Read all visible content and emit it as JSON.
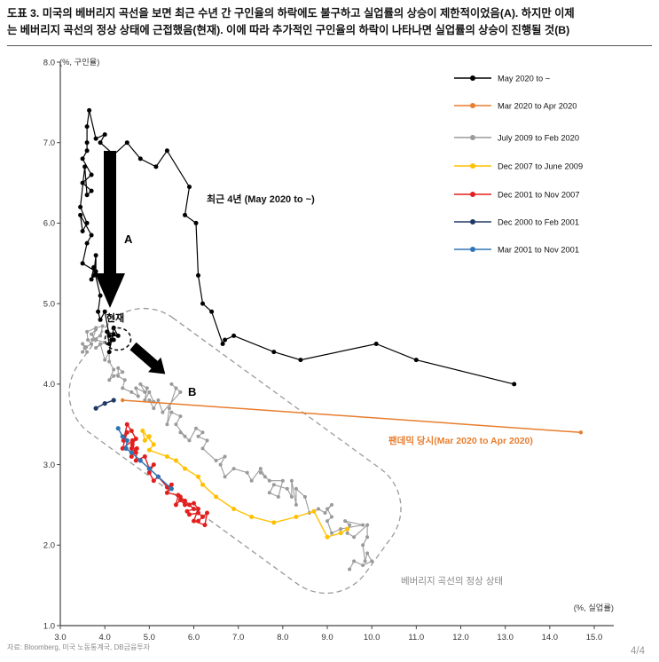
{
  "doc": {
    "title_line1": "도표 3. 미국의 베버리지 곡선을 보면 최근 수년 간 구인율의 하락에도 불구하고 실업률의 상승이 제한적이었음(A). 하지만 이제",
    "title_line2": "는 베버리지 곡선의 정상 상태에 근접했음(현재). 이에 따라 추가적인 구인율의 하락이 나타나면 실업률의 상승이 진행될 것(B)",
    "source": "자료: Bloomberg, 미국 노동통계국, DB금융투자",
    "page": "4/4"
  },
  "chart_data": {
    "type": "scatter",
    "title": "",
    "x_axis": {
      "label": "(%, 실업률)",
      "min": 3.0,
      "max": 15.0,
      "ticks": [
        {
          "v": 3,
          "t": "3.0"
        },
        {
          "v": 4,
          "t": "4.0"
        },
        {
          "v": 5,
          "t": "5.0"
        },
        {
          "v": 6,
          "t": "6.0"
        },
        {
          "v": 7,
          "t": "7.0"
        },
        {
          "v": 8,
          "t": "8.0"
        },
        {
          "v": 9,
          "t": "9.0"
        },
        {
          "v": 10,
          "t": "10.0"
        },
        {
          "v": 11,
          "t": "11.0"
        },
        {
          "v": 12,
          "t": "12.0"
        },
        {
          "v": 13,
          "t": "13.0"
        },
        {
          "v": 14,
          "t": "14.0"
        },
        {
          "v": 15,
          "t": "15.0"
        }
      ]
    },
    "y_axis": {
      "label": "(%, 구인율)",
      "min": 1.0,
      "max": 8.0,
      "ticks": [
        {
          "v": 1,
          "t": "1.0"
        },
        {
          "v": 2,
          "t": "2.0"
        },
        {
          "v": 3,
          "t": "3.0"
        },
        {
          "v": 4,
          "t": "4.0"
        },
        {
          "v": 5,
          "t": "5.0"
        },
        {
          "v": 6,
          "t": "6.0"
        },
        {
          "v": 7,
          "t": "7.0"
        },
        {
          "v": 8,
          "t": "8.0"
        }
      ]
    },
    "grid": false,
    "legend_position": "top-right",
    "series": [
      {
        "name": "May 2020 to ~",
        "color": "#000000",
        "points": [
          [
            13.2,
            4.0
          ],
          [
            11.0,
            4.3
          ],
          [
            10.1,
            4.5
          ],
          [
            8.4,
            4.3
          ],
          [
            7.8,
            4.4
          ],
          [
            6.9,
            4.6
          ],
          [
            6.7,
            4.55
          ],
          [
            6.65,
            4.5
          ],
          [
            6.4,
            4.9
          ],
          [
            6.2,
            5.0
          ],
          [
            6.1,
            5.35
          ],
          [
            6.05,
            6.0
          ],
          [
            5.8,
            6.1
          ],
          [
            5.9,
            6.45
          ],
          [
            5.4,
            6.9
          ],
          [
            5.15,
            6.7
          ],
          [
            4.8,
            6.8
          ],
          [
            4.5,
            7.0
          ],
          [
            4.2,
            6.85
          ],
          [
            3.9,
            7.0
          ],
          [
            4.0,
            7.1
          ],
          [
            3.8,
            7.05
          ],
          [
            3.65,
            7.4
          ],
          [
            3.6,
            7.2
          ],
          [
            3.6,
            7.0
          ],
          [
            3.6,
            6.9
          ],
          [
            3.5,
            6.8
          ],
          [
            3.7,
            6.6
          ],
          [
            3.5,
            6.5
          ],
          [
            3.7,
            6.4
          ],
          [
            3.6,
            6.35
          ],
          [
            3.55,
            6.7
          ],
          [
            3.45,
            6.2
          ],
          [
            3.6,
            6.0
          ],
          [
            3.5,
            5.9
          ],
          [
            3.45,
            6.1
          ],
          [
            3.7,
            5.85
          ],
          [
            3.6,
            5.75
          ],
          [
            3.5,
            5.5
          ],
          [
            3.8,
            5.4
          ],
          [
            3.8,
            5.6
          ],
          [
            3.75,
            5.35
          ],
          [
            3.7,
            5.3
          ],
          [
            3.75,
            5.45
          ],
          [
            3.9,
            5.1
          ],
          [
            3.85,
            4.9
          ],
          [
            3.9,
            4.8
          ],
          [
            4.0,
            4.9
          ],
          [
            4.1,
            4.6
          ],
          [
            4.3,
            4.6
          ],
          [
            4.2,
            4.7
          ],
          [
            4.1,
            4.4
          ],
          [
            4.15,
            4.55
          ],
          [
            4.2,
            4.62
          ],
          [
            4.05,
            4.65
          ],
          [
            4.1,
            4.5
          ],
          [
            4.2,
            4.55
          ]
        ]
      },
      {
        "name": "Mar 2020 to Apr 2020",
        "color": "#E87D2E",
        "points": [
          [
            4.4,
            3.8
          ],
          [
            14.7,
            3.4
          ]
        ]
      },
      {
        "name": "July 2009 to Feb 2020",
        "color": "#9A9A9A",
        "points": [
          [
            9.5,
            1.7
          ],
          [
            9.6,
            1.8
          ],
          [
            9.8,
            1.75
          ],
          [
            10.0,
            1.8
          ],
          [
            9.9,
            1.9
          ],
          [
            9.85,
            1.8
          ],
          [
            9.8,
            2.0
          ],
          [
            9.9,
            2.1
          ],
          [
            9.9,
            2.25
          ],
          [
            9.6,
            2.1
          ],
          [
            9.45,
            2.15
          ],
          [
            9.5,
            2.25
          ],
          [
            9.4,
            2.3
          ],
          [
            9.8,
            2.25
          ],
          [
            9.3,
            2.2
          ],
          [
            9.1,
            2.15
          ],
          [
            9.0,
            2.3
          ],
          [
            9.1,
            2.35
          ],
          [
            9.0,
            2.45
          ],
          [
            9.1,
            2.5
          ],
          [
            8.95,
            2.4
          ],
          [
            8.8,
            2.45
          ],
          [
            8.6,
            2.4
          ],
          [
            8.5,
            2.6
          ],
          [
            8.3,
            2.7
          ],
          [
            8.3,
            2.5
          ],
          [
            8.2,
            2.8
          ],
          [
            8.2,
            2.6
          ],
          [
            8.1,
            2.7
          ],
          [
            7.8,
            2.75
          ],
          [
            7.7,
            2.65
          ],
          [
            7.9,
            2.6
          ],
          [
            8.0,
            2.8
          ],
          [
            7.7,
            2.8
          ],
          [
            7.5,
            2.9
          ],
          [
            7.6,
            2.85
          ],
          [
            7.5,
            2.95
          ],
          [
            7.3,
            2.8
          ],
          [
            7.2,
            2.9
          ],
          [
            6.9,
            2.95
          ],
          [
            6.7,
            2.85
          ],
          [
            6.6,
            3.0
          ],
          [
            6.7,
            3.1
          ],
          [
            6.5,
            3.05
          ],
          [
            6.2,
            3.2
          ],
          [
            6.3,
            3.3
          ],
          [
            6.1,
            3.35
          ],
          [
            6.2,
            3.4
          ],
          [
            6.05,
            3.45
          ],
          [
            5.9,
            3.3
          ],
          [
            5.7,
            3.4
          ],
          [
            5.8,
            3.35
          ],
          [
            5.6,
            3.5
          ],
          [
            5.7,
            3.6
          ],
          [
            5.5,
            3.65
          ],
          [
            5.4,
            3.5
          ],
          [
            5.45,
            3.7
          ],
          [
            5.6,
            3.95
          ],
          [
            5.5,
            4.0
          ],
          [
            5.7,
            3.9
          ],
          [
            5.3,
            3.65
          ],
          [
            5.2,
            3.8
          ],
          [
            5.1,
            3.7
          ],
          [
            5.0,
            3.8
          ],
          [
            5.1,
            3.78
          ],
          [
            5.0,
            3.9
          ],
          [
            4.9,
            3.8
          ],
          [
            4.95,
            3.95
          ],
          [
            4.8,
            4.0
          ],
          [
            4.9,
            3.9
          ],
          [
            4.7,
            3.95
          ],
          [
            4.75,
            3.85
          ],
          [
            4.6,
            3.9
          ],
          [
            4.4,
            3.95
          ],
          [
            4.45,
            4.05
          ],
          [
            4.3,
            4.1
          ],
          [
            4.3,
            4.2
          ],
          [
            4.4,
            4.15
          ],
          [
            4.2,
            4.1
          ],
          [
            4.1,
            4.05
          ],
          [
            4.2,
            4.18
          ],
          [
            4.1,
            4.28
          ],
          [
            4.1,
            4.4
          ],
          [
            4.0,
            4.3
          ],
          [
            3.9,
            4.5
          ],
          [
            3.8,
            4.45
          ],
          [
            4.0,
            4.52
          ],
          [
            3.8,
            4.55
          ],
          [
            3.7,
            4.62
          ],
          [
            3.8,
            4.68
          ],
          [
            3.72,
            4.55
          ],
          [
            3.9,
            4.6
          ],
          [
            3.95,
            4.72
          ],
          [
            3.8,
            4.7
          ],
          [
            3.6,
            4.65
          ],
          [
            3.62,
            4.55
          ],
          [
            3.7,
            4.5
          ],
          [
            3.55,
            4.45
          ],
          [
            3.6,
            4.4
          ],
          [
            3.5,
            4.5
          ],
          [
            3.58,
            4.46
          ],
          [
            3.5,
            4.4
          ]
        ]
      },
      {
        "name": "Dec 2007 to June 2009",
        "color": "#FFC000",
        "points": [
          [
            5.0,
            3.35
          ],
          [
            4.9,
            3.3
          ],
          [
            4.85,
            3.42
          ],
          [
            5.1,
            3.25
          ],
          [
            5.0,
            3.18
          ],
          [
            5.4,
            3.1
          ],
          [
            5.6,
            3.05
          ],
          [
            5.8,
            2.95
          ],
          [
            6.1,
            2.85
          ],
          [
            6.2,
            2.75
          ],
          [
            6.5,
            2.6
          ],
          [
            6.9,
            2.45
          ],
          [
            7.3,
            2.35
          ],
          [
            7.8,
            2.28
          ],
          [
            8.3,
            2.35
          ],
          [
            8.7,
            2.42
          ],
          [
            9.0,
            2.1
          ],
          [
            9.3,
            2.15
          ],
          [
            9.45,
            2.2
          ]
        ]
      },
      {
        "name": "Dec 2001 to Nov 2007",
        "color": "#E21F1F",
        "points": [
          [
            5.7,
            2.6
          ],
          [
            5.8,
            2.55
          ],
          [
            5.9,
            2.5
          ],
          [
            6.0,
            2.45
          ],
          [
            5.85,
            2.42
          ],
          [
            5.9,
            2.38
          ],
          [
            6.1,
            2.4
          ],
          [
            6.2,
            2.35
          ],
          [
            6.1,
            2.3
          ],
          [
            6.3,
            2.4
          ],
          [
            6.25,
            2.25
          ],
          [
            6.0,
            2.3
          ],
          [
            6.1,
            2.45
          ],
          [
            6.0,
            2.52
          ],
          [
            5.8,
            2.5
          ],
          [
            5.7,
            2.56
          ],
          [
            5.6,
            2.5
          ],
          [
            5.65,
            2.62
          ],
          [
            5.4,
            2.65
          ],
          [
            5.5,
            2.75
          ],
          [
            5.4,
            2.72
          ],
          [
            5.2,
            2.85
          ],
          [
            5.1,
            2.8
          ],
          [
            5.0,
            2.9
          ],
          [
            5.1,
            3.0
          ],
          [
            5.0,
            2.95
          ],
          [
            4.9,
            3.1
          ],
          [
            4.7,
            3.05
          ],
          [
            4.72,
            3.2
          ],
          [
            4.6,
            3.1
          ],
          [
            4.62,
            3.3
          ],
          [
            4.4,
            3.2
          ],
          [
            4.5,
            3.4
          ],
          [
            4.42,
            3.3
          ],
          [
            4.5,
            3.5
          ],
          [
            4.6,
            3.42
          ],
          [
            4.7,
            3.32
          ],
          [
            4.62,
            3.25
          ],
          [
            4.7,
            3.15
          ],
          [
            4.6,
            3.2
          ]
        ]
      },
      {
        "name": "Dec 2000 to Feb 2001",
        "color": "#1F3864",
        "points": [
          [
            3.8,
            3.7
          ],
          [
            4.0,
            3.76
          ],
          [
            4.2,
            3.8
          ]
        ]
      },
      {
        "name": "Mar 2001 to Nov 2001",
        "color": "#2E75B6",
        "points": [
          [
            4.3,
            3.45
          ],
          [
            4.4,
            3.35
          ],
          [
            4.5,
            3.3
          ],
          [
            4.48,
            3.2
          ],
          [
            4.6,
            3.15
          ],
          [
            4.8,
            3.05
          ],
          [
            5.0,
            2.95
          ],
          [
            5.2,
            2.85
          ],
          [
            5.5,
            2.7
          ]
        ]
      }
    ],
    "annotations": {
      "recent_label": "최근 4년 (May 2020 to ~)",
      "arrow_a_label": "A",
      "current_label": "현재",
      "arrow_b_label": "B",
      "pandemic_label": "팬데믹 당시(Mar 2020 to Apr 2020)",
      "normal_state_label": "베버리지 곡선의 정상 상태"
    },
    "colors": {
      "pandemic_text": "#E87D2E",
      "normal_state_text": "#8a8a8a",
      "axis": "#444444"
    }
  }
}
